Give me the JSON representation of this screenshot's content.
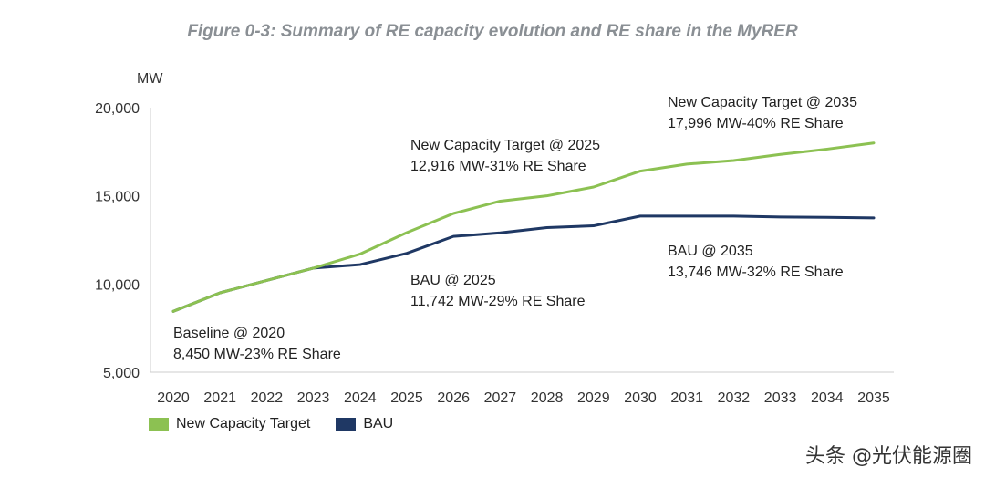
{
  "chart_data": {
    "type": "line",
    "title": "Figure 0-3: Summary of RE capacity evolution and RE share in the MyRER",
    "ylabel": "MW",
    "xlabel": "",
    "ylim": [
      5000,
      20000
    ],
    "yticks": [
      "5,000",
      "10,000",
      "15,000",
      "20,000"
    ],
    "ytick_values": [
      5000,
      10000,
      15000,
      20000
    ],
    "x": [
      "2020",
      "2021",
      "2022",
      "2023",
      "2024",
      "2025",
      "2026",
      "2027",
      "2028",
      "2029",
      "2030",
      "2031",
      "2032",
      "2033",
      "2034",
      "2035"
    ],
    "series": [
      {
        "name": "New Capacity Target",
        "color": "#8cc152",
        "values": [
          8450,
          9500,
          10200,
          10900,
          11700,
          12916,
          14000,
          14700,
          15000,
          15500,
          16400,
          16800,
          17000,
          17350,
          17650,
          17996
        ]
      },
      {
        "name": "BAU",
        "color": "#1f3864",
        "values": [
          8450,
          9500,
          10200,
          10900,
          11100,
          11742,
          12700,
          12900,
          13200,
          13300,
          13850,
          13850,
          13850,
          13800,
          13780,
          13746
        ]
      }
    ],
    "annotations": [
      {
        "line1": "Baseline @ 2020",
        "line2": "8,450 MW-23% RE Share"
      },
      {
        "line1": "BAU @ 2025",
        "line2": "11,742 MW-29% RE Share"
      },
      {
        "line1": "New Capacity Target @ 2025",
        "line2": "12,916 MW-31% RE Share"
      },
      {
        "line1": "BAU @ 2035",
        "line2": "13,746 MW-32% RE Share"
      },
      {
        "line1": "New Capacity Target @ 2035",
        "line2": "17,996 MW-40% RE Share"
      }
    ],
    "legend": {
      "position": "bottom-left"
    },
    "grid": false
  },
  "watermark": "头条 @光伏能源圈"
}
